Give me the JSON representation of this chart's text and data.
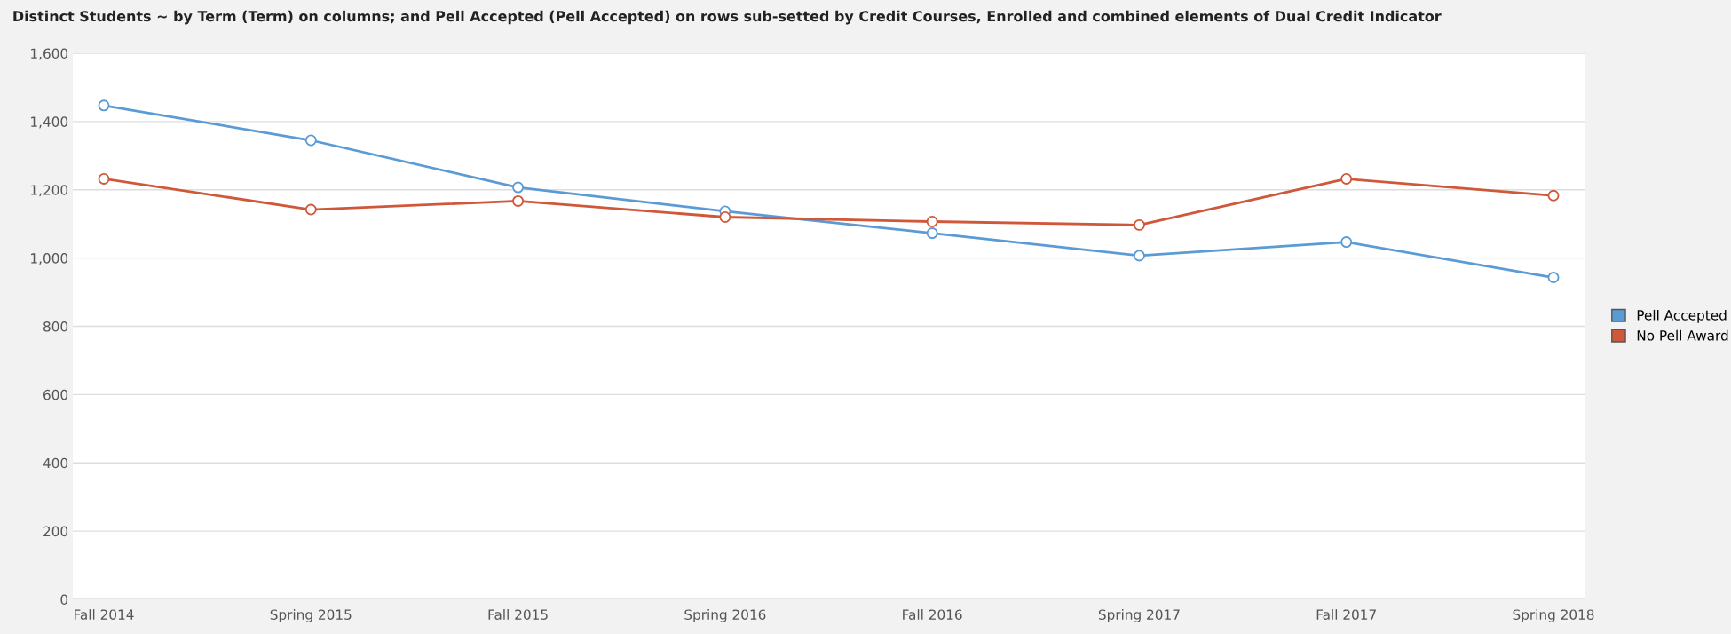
{
  "chart_data": {
    "type": "line",
    "title": "Distinct Students ~ by Term (Term) on columns; and Pell Accepted (Pell Accepted) on rows sub-setted by Credit Courses, Enrolled and combined elements of Dual Credit Indicator",
    "categories": [
      "Fall 2014",
      "Spring 2015",
      "Fall 2015",
      "Spring 2016",
      "Fall 2016",
      "Spring 2017",
      "Fall 2017",
      "Spring 2018"
    ],
    "series": [
      {
        "name": "Pell Accepted",
        "color": "#5b9bd5",
        "values": [
          1447,
          1345,
          1207,
          1137,
          1073,
          1007,
          1047,
          943
        ]
      },
      {
        "name": "No Pell Award",
        "color": "#d0583a",
        "values": [
          1232,
          1142,
          1167,
          1120,
          1107,
          1097,
          1232,
          1183
        ]
      }
    ],
    "ylim": [
      0,
      1600
    ],
    "yticks": [
      {
        "value": 0,
        "label": "0"
      },
      {
        "value": 200,
        "label": "200"
      },
      {
        "value": 400,
        "label": "400"
      },
      {
        "value": 600,
        "label": "600"
      },
      {
        "value": 800,
        "label": "800"
      },
      {
        "value": 1000,
        "label": "1,000"
      },
      {
        "value": 1200,
        "label": "1,200"
      },
      {
        "value": 1400,
        "label": "1,400"
      },
      {
        "value": 1600,
        "label": "1,600"
      }
    ],
    "grid": "y",
    "legend": "right",
    "marker": "circle",
    "line_style": "solid"
  }
}
